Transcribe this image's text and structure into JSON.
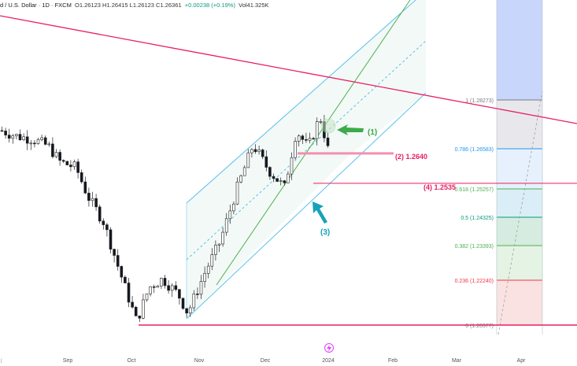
{
  "header": {
    "symbol_line": "d / U.S. Dollar · 1D · FXCM",
    "ohlc": "O1.26123 H1.26415 L1.26123 C1.26361",
    "change": "+0.00238 (+0.19%)",
    "volume": "Vol41.325K"
  },
  "chart_data": {
    "type": "candlestick",
    "x_ticks": [
      "Sep",
      "Oct",
      "Nov",
      "Dec",
      "2024",
      "Feb",
      "Mar",
      "Apr"
    ],
    "fib_levels": [
      {
        "ratio": "1",
        "price": "1.28273",
        "label": "1 (1.28273)",
        "color": "#787b86"
      },
      {
        "ratio": "0.786",
        "price": "1.26583",
        "label": "0.786 (1.26583)",
        "color": "#2196f3"
      },
      {
        "ratio": "0.618",
        "price": "1.25257",
        "label": "0.618 (1.25257)",
        "color": "#4caf50"
      },
      {
        "ratio": "0.5",
        "price": "1.24325",
        "label": "0.5 (1.24325)",
        "color": "#089981"
      },
      {
        "ratio": "0.382",
        "price": "1.23393",
        "label": "0.382 (1.23393)",
        "color": "#4caf50"
      },
      {
        "ratio": "0.236",
        "price": "1.22240",
        "label": "0.236 (1.22240)",
        "color": "#f23645"
      },
      {
        "ratio": "0",
        "price": "1.20377",
        "label": "0 (1.20377)",
        "color": "#787b86"
      }
    ],
    "annotations": [
      {
        "id": "1",
        "text": "(1)",
        "color": "#3cab4b"
      },
      {
        "id": "2",
        "text": "(2) 1.2640",
        "color": "#e91e63"
      },
      {
        "id": "3",
        "text": "(3)",
        "color": "#17a2b8"
      },
      {
        "id": "4",
        "text": "(4) 1.2535",
        "color": "#e91e63"
      }
    ],
    "horizontal_lines": [
      {
        "name": "(2) 1.2640",
        "price": 1.264
      },
      {
        "name": "(4) 1.2535",
        "price": 1.2535
      },
      {
        "name": "0 (1.20377)",
        "price": 1.20377
      }
    ],
    "colors": {
      "up": "#089981",
      "down": "#131722",
      "trendline": "#e91e63",
      "channel": "#5bc0eb",
      "pitch": "#4caf50",
      "support": "#e91e63"
    },
    "icons": [
      "lightning-icon"
    ]
  }
}
